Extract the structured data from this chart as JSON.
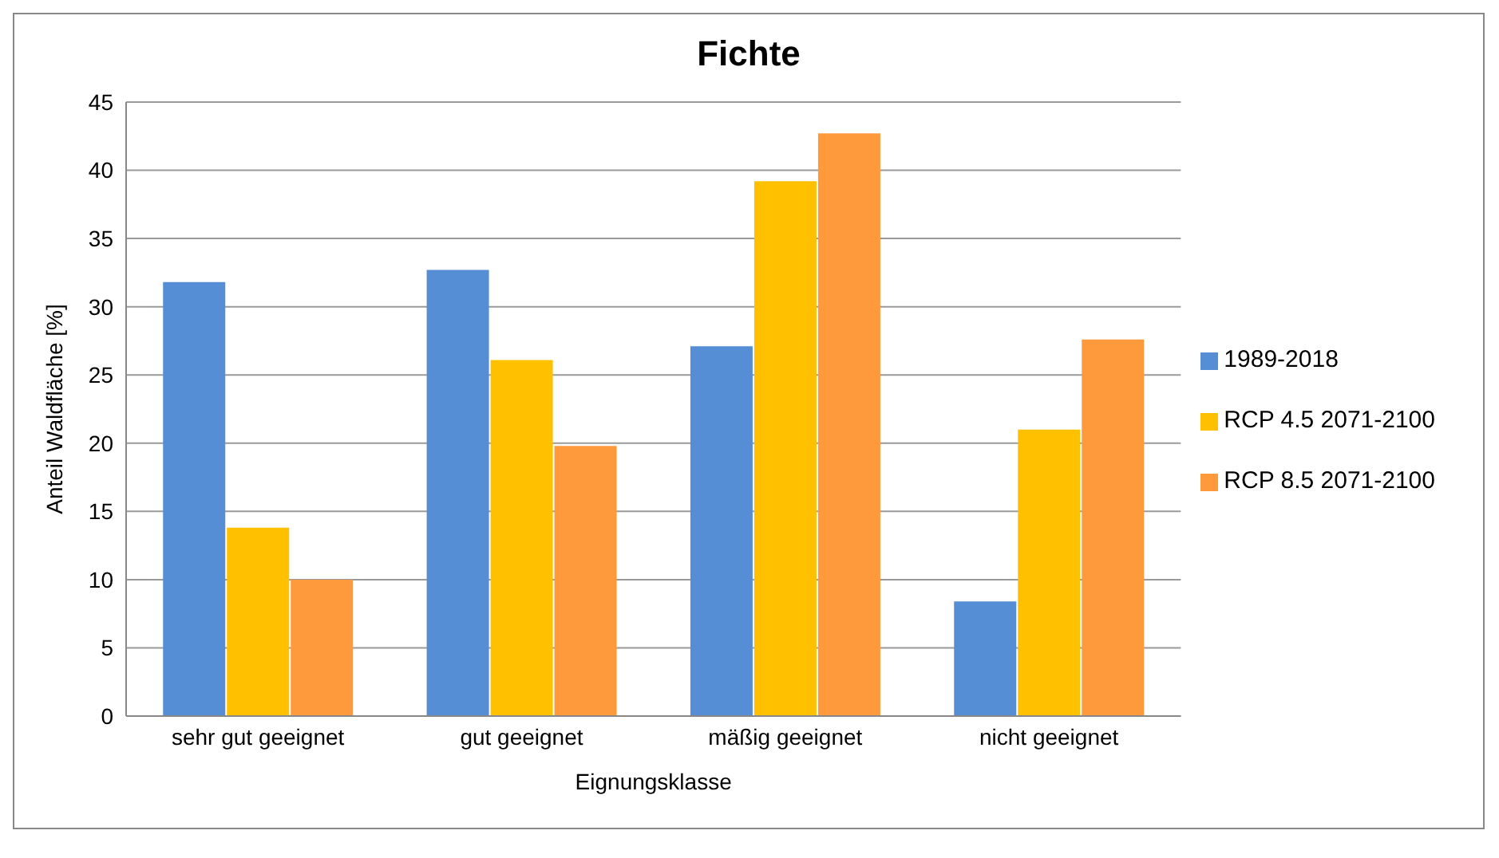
{
  "chart_data": {
    "type": "bar",
    "title": "Fichte",
    "xlabel": "Eignungsklasse",
    "ylabel": "Anteil Waldfläche [%]",
    "categories": [
      "sehr gut geeignet",
      "gut geeignet",
      "mäßig geeignet",
      "nicht geeignet"
    ],
    "series": [
      {
        "name": "1989-2018",
        "color": "#558ed5",
        "values": [
          31.8,
          32.7,
          27.1,
          8.4
        ]
      },
      {
        "name": "RCP 4.5 2071-2100",
        "color": "#ffc000",
        "values": [
          13.8,
          26.1,
          39.2,
          21.0
        ]
      },
      {
        "name": "RCP 8.5 2071-2100",
        "color": "#ff9a3c",
        "values": [
          10.0,
          19.8,
          42.7,
          27.6
        ]
      }
    ],
    "ylim": [
      0,
      45
    ],
    "yticks": [
      0,
      5,
      10,
      15,
      20,
      25,
      30,
      35,
      40,
      45
    ],
    "grid": "y",
    "legend": "right"
  }
}
